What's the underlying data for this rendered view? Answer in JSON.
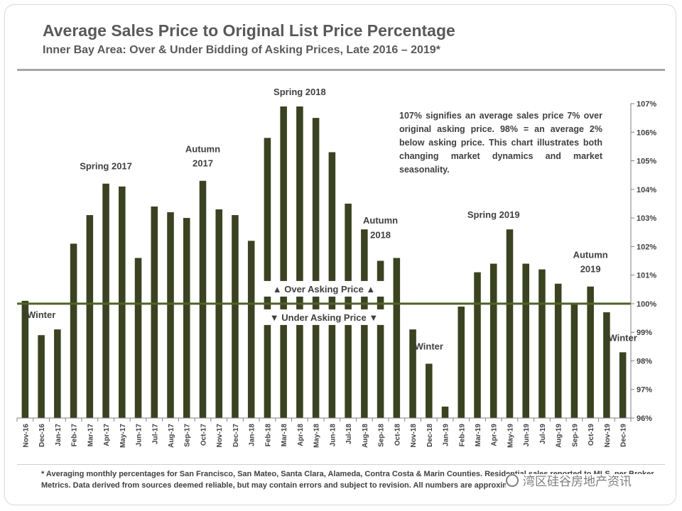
{
  "chart_data": {
    "type": "bar",
    "title": "Average Sales Price to Original List Price Percentage",
    "subtitle": "Inner Bay Area: Over & Under Bidding of Asking Prices, Late 2016 – 2019*",
    "xlabel": "",
    "ylabel": "",
    "ylim": [
      96,
      107
    ],
    "yticks": [
      96,
      97,
      98,
      99,
      100,
      101,
      102,
      103,
      104,
      105,
      106,
      107
    ],
    "ytick_suffix": "%",
    "y_axis_position": "right",
    "grid": false,
    "categories": [
      "Nov-16",
      "Dec-16",
      "Jan-17",
      "Feb-17",
      "Mar-17",
      "Apr-17",
      "May-17",
      "Jun-17",
      "Jul-17",
      "Aug-17",
      "Sep-17",
      "Oct-17",
      "Nov-17",
      "Dec-17",
      "Jan-18",
      "Feb-18",
      "Mar-18",
      "Apr-18",
      "May-18",
      "Jun-18",
      "Jul-18",
      "Aug-18",
      "Sep-18",
      "Oct-18",
      "Nov-18",
      "Dec-18",
      "Jan-19",
      "Feb-19",
      "Mar-19",
      "Apr-19",
      "May-19",
      "Jun-19",
      "Jul-19",
      "Aug-19",
      "Sep-19",
      "Oct-19",
      "Nov-19",
      "Dec-19"
    ],
    "values": [
      100.1,
      98.9,
      99.1,
      102.1,
      103.1,
      104.2,
      104.1,
      101.6,
      103.4,
      103.2,
      103.0,
      104.3,
      103.3,
      103.1,
      102.2,
      105.8,
      106.9,
      106.9,
      106.5,
      105.3,
      103.5,
      102.6,
      101.5,
      101.6,
      99.1,
      97.9,
      96.4,
      99.9,
      101.1,
      101.4,
      102.6,
      101.4,
      101.2,
      100.7,
      100.0,
      100.6,
      99.7,
      98.3
    ],
    "reference_line": {
      "value": 100,
      "label_above": "▲ Over Asking Price ▲",
      "label_below": "▼ Under Asking Price ▼"
    },
    "annotations": [
      {
        "text": "Winter",
        "category": "Dec-16",
        "y": 99.5
      },
      {
        "text": "Spring 2017",
        "category": "Apr-17",
        "y": 104.7
      },
      {
        "text": "Autumn",
        "category": "Oct-17",
        "y": 105.3
      },
      {
        "text": "2017",
        "category": "Oct-17",
        "y": 104.8
      },
      {
        "text": "Spring 2018",
        "category": "Apr-18",
        "y": 107.3
      },
      {
        "text": "Autumn",
        "category": "Sep-18",
        "y": 102.8
      },
      {
        "text": "2018",
        "category": "Sep-18",
        "y": 102.3
      },
      {
        "text": "Winter",
        "category": "Dec-18",
        "y": 98.4
      },
      {
        "text": "Spring 2019",
        "category": "Apr-19",
        "y": 103.0
      },
      {
        "text": "Autumn",
        "category": "Oct-19",
        "y": 101.6
      },
      {
        "text": "2019",
        "category": "Oct-19",
        "y": 101.1
      },
      {
        "text": "Winter",
        "category": "Dec-19",
        "y": 98.7
      }
    ],
    "note": "107% signifies an average sales price 7% over original asking price. 98% = an average 2% below asking price. This chart illustrates both changing market dynamics and market seasonality.",
    "footnote": "* Averaging monthly percentages for San Francisco, San Mateo, Santa Clara, Alameda, Contra Costa & Marin Counties. Residential sales reported to MLS, per Broker Metrics. Data derived from sources deemed reliable, but may contain errors and subject to revision. All numbers are approximate.",
    "colors": {
      "bar": "#3b4221",
      "reference_line": "#4f6228",
      "text": "#404040",
      "axis": "#7f7f7f"
    }
  },
  "watermark": {
    "text": "湾区硅谷房地产资讯"
  }
}
